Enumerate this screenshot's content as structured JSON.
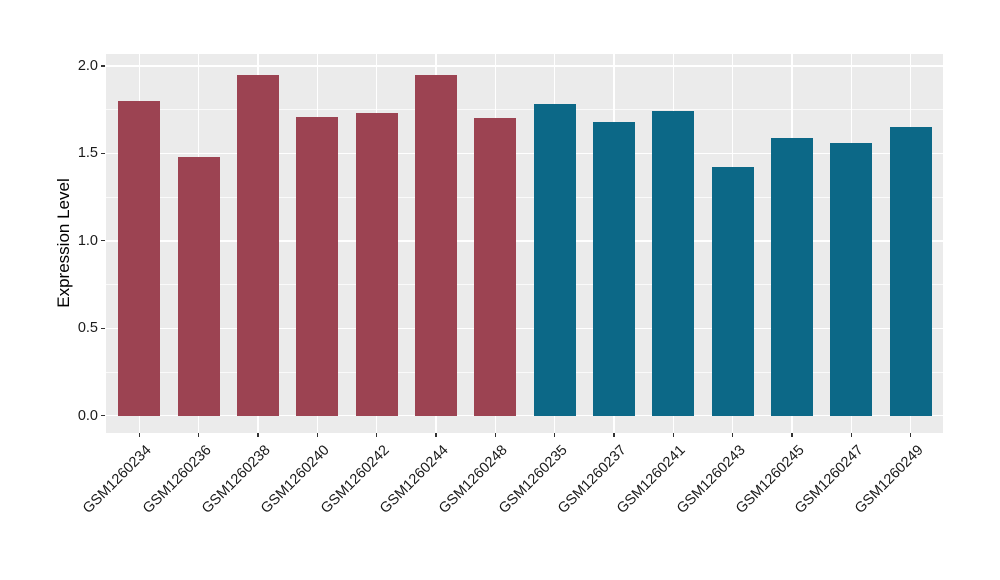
{
  "chart_data": {
    "type": "bar",
    "title": "",
    "xlabel": "",
    "ylabel": "Expression Level",
    "categories": [
      "GSM1260234",
      "GSM1260236",
      "GSM1260238",
      "GSM1260240",
      "GSM1260242",
      "GSM1260244",
      "GSM1260248",
      "GSM1260235",
      "GSM1260237",
      "GSM1260241",
      "GSM1260243",
      "GSM1260245",
      "GSM1260247",
      "GSM1260249"
    ],
    "values": [
      1.8,
      1.48,
      1.95,
      1.71,
      1.73,
      1.95,
      1.7,
      1.78,
      1.68,
      1.74,
      1.42,
      1.59,
      1.56,
      1.65
    ],
    "bar_colors": [
      "#9C4352",
      "#9C4352",
      "#9C4352",
      "#9C4352",
      "#9C4352",
      "#9C4352",
      "#9C4352",
      "#0C6887",
      "#0C6887",
      "#0C6887",
      "#0C6887",
      "#0C6887",
      "#0C6887",
      "#0C6887"
    ],
    "groups": [
      {
        "color": "#9C4352",
        "samples": [
          "GSM1260234",
          "GSM1260236",
          "GSM1260238",
          "GSM1260240",
          "GSM1260242",
          "GSM1260244",
          "GSM1260248"
        ]
      },
      {
        "color": "#0C6887",
        "samples": [
          "GSM1260235",
          "GSM1260237",
          "GSM1260241",
          "GSM1260243",
          "GSM1260245",
          "GSM1260247",
          "GSM1260249"
        ]
      }
    ],
    "y_axis": {
      "ticks": [
        0.0,
        0.5,
        1.0,
        1.5,
        2.0
      ],
      "tick_labels": [
        "0.0",
        "0.5",
        "1.0",
        "1.5",
        "2.0"
      ],
      "minor_ticks": [
        0.25,
        0.75,
        1.25,
        1.75
      ],
      "lim": [
        0,
        2.06
      ]
    },
    "layout_hints": {
      "grid": "on",
      "legend": "none",
      "panel_bg": "#EBEBEB",
      "grid_color": "#FFFFFF"
    }
  }
}
